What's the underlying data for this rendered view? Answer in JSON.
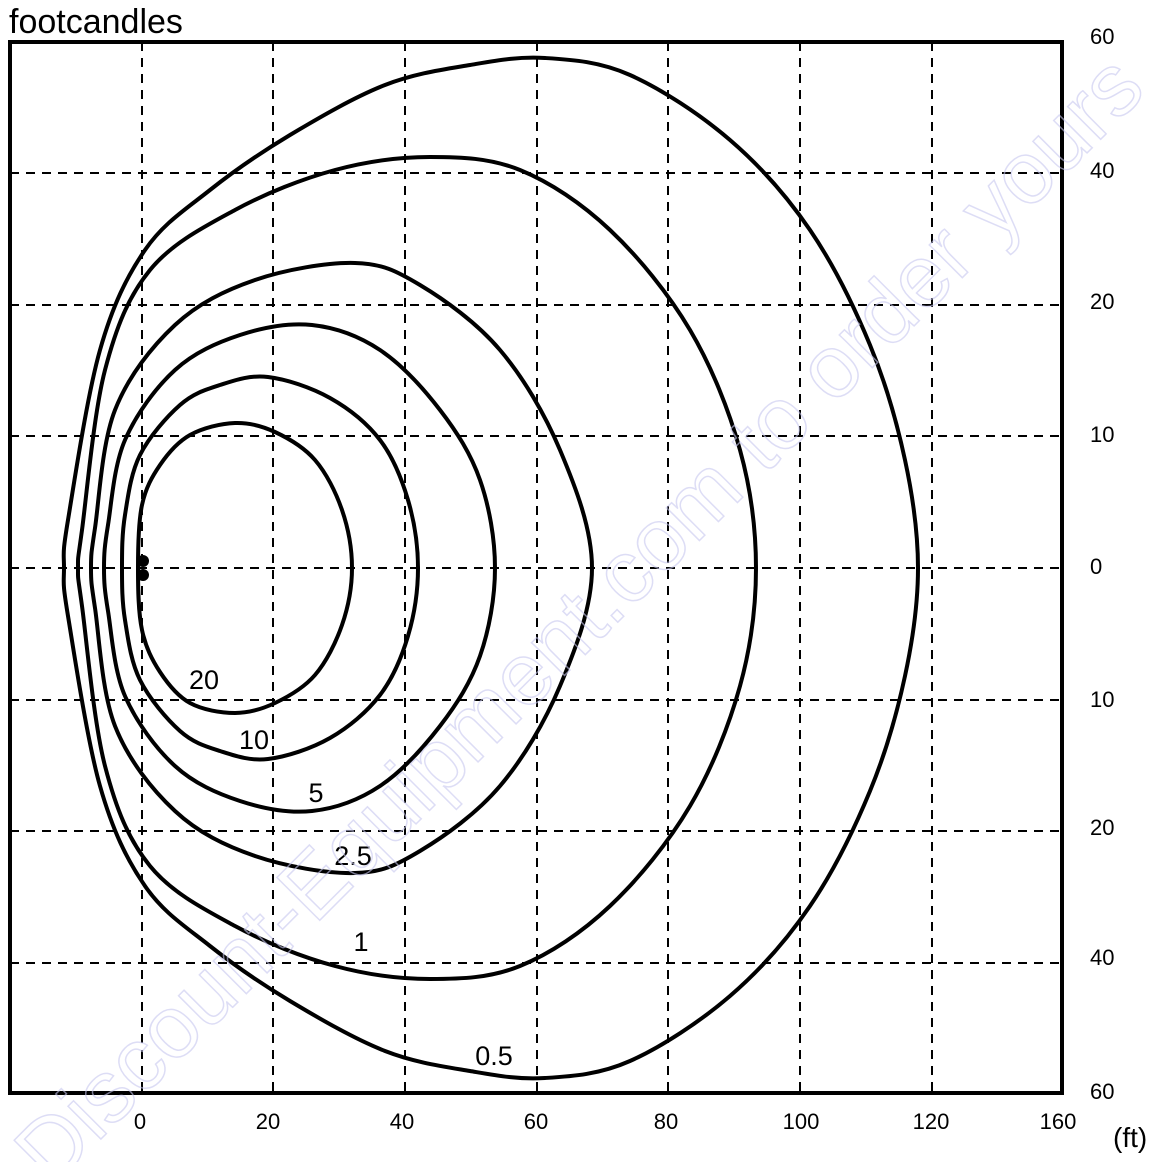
{
  "chart_data": {
    "type": "contour",
    "title": "footcandles",
    "x_unit": "(ft)",
    "x_ticks": [
      "0",
      "20",
      "40",
      "60",
      "80",
      "100",
      "120",
      "160"
    ],
    "y_ticks_right": [
      "60",
      "40",
      "20",
      "10",
      "0",
      "10",
      "20",
      "40",
      "60"
    ],
    "grid": "dashed",
    "luminaire_position": {
      "x": 0,
      "y": 0
    },
    "contours": [
      {
        "label": "20",
        "value": 20
      },
      {
        "label": "10",
        "value": 10
      },
      {
        "label": "5",
        "value": 5
      },
      {
        "label": "2.5",
        "value": 2.5
      },
      {
        "label": "1",
        "value": 1
      },
      {
        "label": "0.5",
        "value": 0.5
      }
    ]
  },
  "watermark": "Discount-Equipment.com to order yours"
}
